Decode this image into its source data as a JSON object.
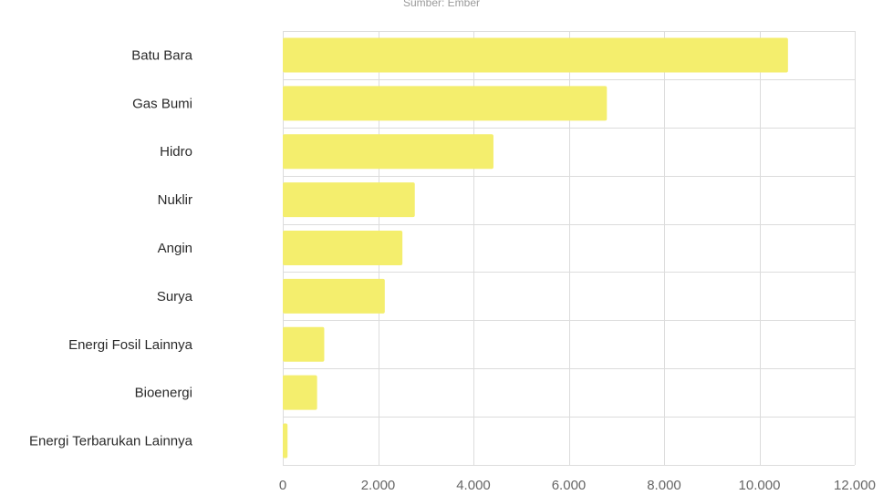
{
  "source": "Sumber: Ember",
  "colors": {
    "bar": "#f4ee6d",
    "grid": "#dcdcdc",
    "label": "#2a2a2a",
    "tick": "#666666"
  },
  "chart_data": {
    "type": "bar",
    "orientation": "horizontal",
    "categories": [
      "Batu Bara",
      "Gas Bumi",
      "Hidro",
      "Nuklir",
      "Angin",
      "Surya",
      "Energi Fosil Lainnya",
      "Bioenergi",
      "Energi Terbarukan Lainnya"
    ],
    "values": [
      10600,
      6800,
      4420,
      2770,
      2510,
      2140,
      870,
      720,
      100
    ],
    "xlim": [
      0,
      12000
    ],
    "xticks": [
      0,
      2000,
      4000,
      6000,
      8000,
      10000,
      12000
    ],
    "xtick_labels": [
      "0",
      "2.000",
      "4.000",
      "6.000",
      "8.000",
      "10.000",
      "12.000"
    ],
    "grid": true,
    "legend": "none",
    "title": "",
    "xlabel": "",
    "ylabel": ""
  }
}
